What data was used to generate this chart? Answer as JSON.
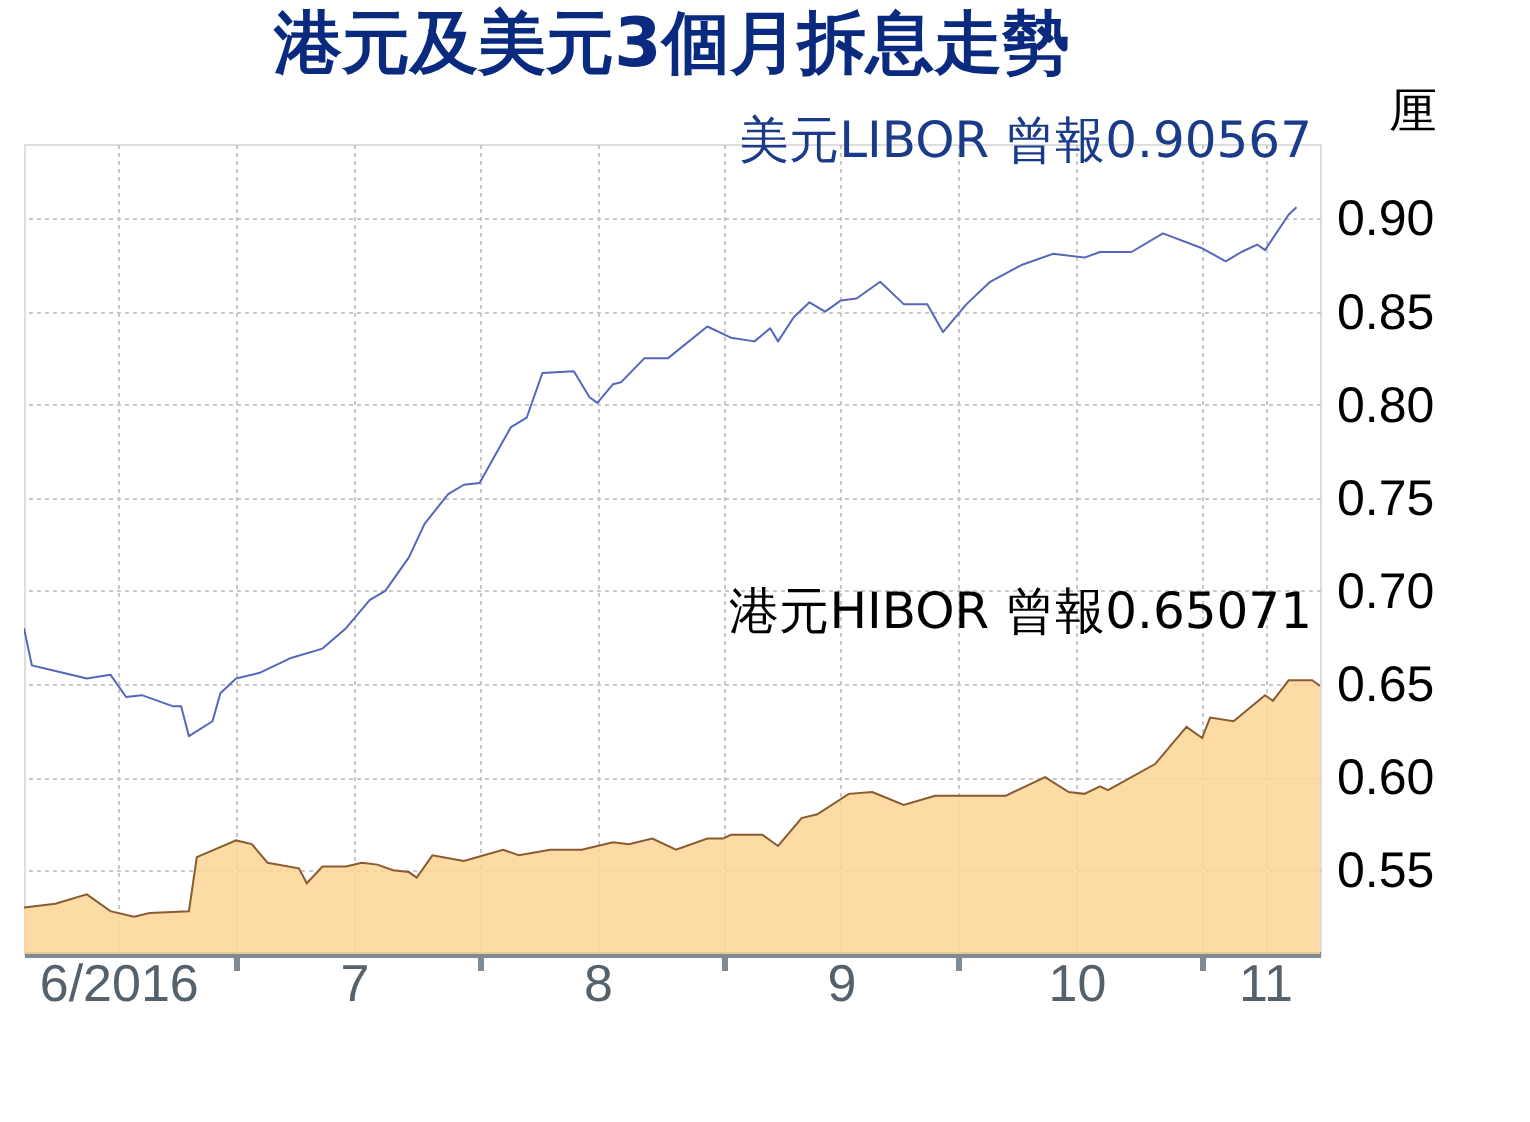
{
  "chart_data": {
    "type": "line",
    "title": "港元及美元3個月拆息走勢",
    "ylabel": "厘",
    "xlim": [
      "2016-06-04",
      "2016-11-16"
    ],
    "xticks": [
      {
        "value": "2016-06-16",
        "label": "6/2016"
      },
      {
        "value": "2016-07-01",
        "label": null
      },
      {
        "value": "2016-07-16",
        "label": "7"
      },
      {
        "value": "2016-08-01",
        "label": null
      },
      {
        "value": "2016-08-16",
        "label": "8"
      },
      {
        "value": "2016-09-01",
        "label": null
      },
      {
        "value": "2016-09-16",
        "label": "9"
      },
      {
        "value": "2016-10-01",
        "label": null
      },
      {
        "value": "2016-10-16",
        "label": "10"
      },
      {
        "value": "2016-11-01",
        "label": null
      },
      {
        "value": "2016-11-09",
        "label": "11"
      }
    ],
    "ylim": [
      0.505,
      0.94
    ],
    "yticks": [
      {
        "value": 0.55,
        "label": "0.55"
      },
      {
        "value": 0.6,
        "label": "0.60"
      },
      {
        "value": 0.65,
        "label": "0.65"
      },
      {
        "value": 0.7,
        "label": "0.70"
      },
      {
        "value": 0.75,
        "label": "0.75"
      },
      {
        "value": 0.8,
        "label": "0.80"
      },
      {
        "value": 0.85,
        "label": "0.85"
      },
      {
        "value": 0.9,
        "label": "0.90"
      }
    ],
    "grid": true,
    "legend": false,
    "series": [
      {
        "name": "美元LIBOR 曾報0.90567",
        "color": "#5566bb",
        "x": [
          "2016-06-04",
          "2016-06-05",
          "2016-06-08",
          "2016-06-12",
          "2016-06-15",
          "2016-06-17",
          "2016-06-19",
          "2016-06-23",
          "2016-06-24",
          "2016-06-25",
          "2016-06-28",
          "2016-06-29",
          "2016-07-01",
          "2016-07-04",
          "2016-07-08",
          "2016-07-12",
          "2016-07-15",
          "2016-07-18",
          "2016-07-20",
          "2016-07-23",
          "2016-07-25",
          "2016-07-28",
          "2016-07-30",
          "2016-08-01",
          "2016-08-03",
          "2016-08-05",
          "2016-08-07",
          "2016-08-09",
          "2016-08-13",
          "2016-08-15",
          "2016-08-16",
          "2016-08-18",
          "2016-08-19",
          "2016-08-22",
          "2016-08-25",
          "2016-08-30",
          "2016-09-02",
          "2016-09-05",
          "2016-09-07",
          "2016-09-08",
          "2016-09-10",
          "2016-09-12",
          "2016-09-14",
          "2016-09-16",
          "2016-09-18",
          "2016-09-21",
          "2016-09-24",
          "2016-09-27",
          "2016-09-29",
          "2016-10-02",
          "2016-10-05",
          "2016-10-09",
          "2016-10-13",
          "2016-10-17",
          "2016-10-19",
          "2016-10-23",
          "2016-10-27",
          "2016-11-01",
          "2016-11-04",
          "2016-11-06",
          "2016-11-08",
          "2016-11-09",
          "2016-11-12",
          "2016-11-13"
        ],
        "values": [
          0.68,
          0.66,
          0.657,
          0.653,
          0.655,
          0.643,
          0.644,
          0.638,
          0.638,
          0.622,
          0.63,
          0.645,
          0.653,
          0.656,
          0.664,
          0.669,
          0.68,
          0.695,
          0.7,
          0.718,
          0.736,
          0.752,
          0.757,
          0.758,
          0.773,
          0.788,
          0.793,
          0.817,
          0.818,
          0.804,
          0.801,
          0.811,
          0.812,
          0.825,
          0.825,
          0.842,
          0.836,
          0.834,
          0.841,
          0.834,
          0.847,
          0.855,
          0.85,
          0.856,
          0.857,
          0.866,
          0.854,
          0.854,
          0.839,
          0.854,
          0.866,
          0.875,
          0.881,
          0.879,
          0.882,
          0.882,
          0.892,
          0.884,
          0.877,
          0.882,
          0.886,
          0.883,
          0.902,
          0.906
        ]
      },
      {
        "name": "港元HIBOR 曾報0.65071",
        "color": "#fcd595",
        "type": "area",
        "x": [
          "2016-06-04",
          "2016-06-08",
          "2016-06-12",
          "2016-06-15",
          "2016-06-18",
          "2016-06-20",
          "2016-06-25",
          "2016-06-26",
          "2016-07-01",
          "2016-07-03",
          "2016-07-05",
          "2016-07-09",
          "2016-07-10",
          "2016-07-12",
          "2016-07-15",
          "2016-07-17",
          "2016-07-19",
          "2016-07-21",
          "2016-07-23",
          "2016-07-24",
          "2016-07-26",
          "2016-07-30",
          "2016-08-04",
          "2016-08-06",
          "2016-08-10",
          "2016-08-14",
          "2016-08-18",
          "2016-08-20",
          "2016-08-23",
          "2016-08-26",
          "2016-08-30",
          "2016-09-01",
          "2016-09-02",
          "2016-09-06",
          "2016-09-08",
          "2016-09-11",
          "2016-09-13",
          "2016-09-17",
          "2016-09-20",
          "2016-09-24",
          "2016-09-28",
          "2016-10-02",
          "2016-10-07",
          "2016-10-12",
          "2016-10-15",
          "2016-10-17",
          "2016-10-19",
          "2016-10-20",
          "2016-10-26",
          "2016-10-30",
          "2016-11-01",
          "2016-11-02",
          "2016-11-05",
          "2016-11-09",
          "2016-11-10",
          "2016-11-12",
          "2016-11-15",
          "2016-11-16"
        ],
        "values": [
          0.53,
          0.532,
          0.537,
          0.528,
          0.525,
          0.527,
          0.528,
          0.557,
          0.566,
          0.564,
          0.554,
          0.551,
          0.543,
          0.552,
          0.552,
          0.554,
          0.553,
          0.55,
          0.549,
          0.546,
          0.558,
          0.555,
          0.561,
          0.558,
          0.561,
          0.561,
          0.565,
          0.564,
          0.567,
          0.561,
          0.567,
          0.567,
          0.569,
          0.569,
          0.563,
          0.578,
          0.58,
          0.591,
          0.592,
          0.585,
          0.59,
          0.59,
          0.59,
          0.6,
          0.592,
          0.591,
          0.595,
          0.593,
          0.607,
          0.627,
          0.621,
          0.632,
          0.63,
          0.644,
          0.641,
          0.652,
          0.652,
          0.649
        ]
      }
    ]
  }
}
